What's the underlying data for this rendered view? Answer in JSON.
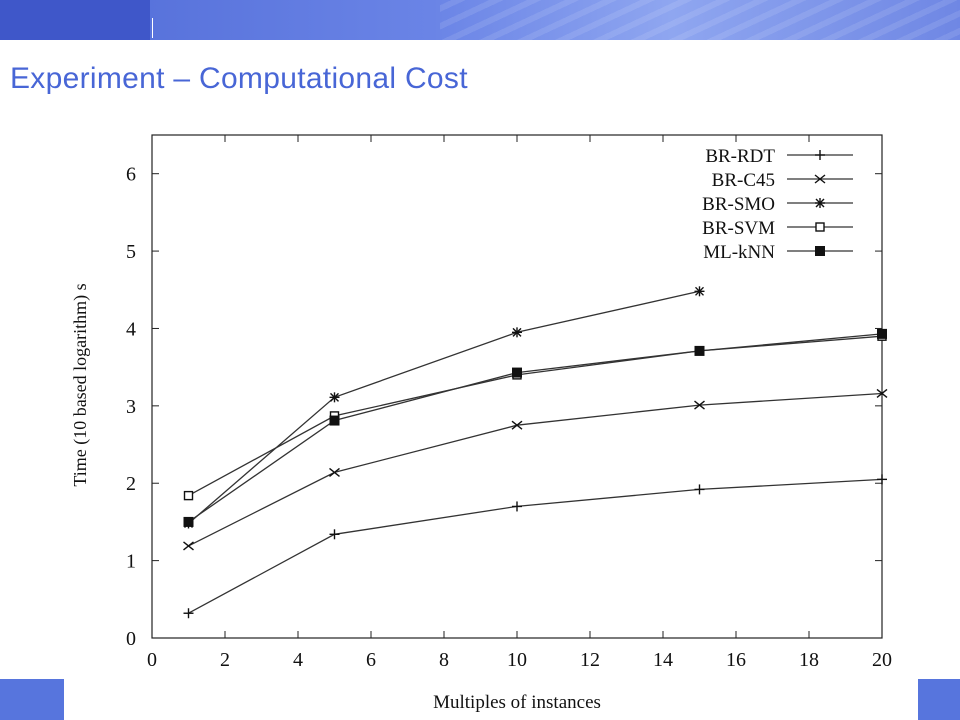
{
  "slide": {
    "title": "Experiment – Computational Cost",
    "accent_color": "#4866d6",
    "banner_color": "#5775dd"
  },
  "chart_data": {
    "type": "line",
    "xlabel": "Multiples of instances",
    "ylabel": "Time (10 based logarithm) s",
    "xlim": [
      0,
      20
    ],
    "ylim": [
      0,
      6.5
    ],
    "xticks": [
      "0",
      "2",
      "4",
      "6",
      "8",
      "10",
      "12",
      "14",
      "16",
      "18",
      "20"
    ],
    "yticks": [
      "0",
      "1",
      "2",
      "3",
      "4",
      "5",
      "6"
    ],
    "grid": false,
    "legend_position": "top-right",
    "series": [
      {
        "name": "BR-RDT",
        "marker": "plus",
        "x": [
          1,
          5,
          10,
          15,
          20
        ],
        "y": [
          0.32,
          1.34,
          1.7,
          1.92,
          2.05
        ]
      },
      {
        "name": "BR-C45",
        "marker": "cross",
        "x": [
          1,
          5,
          10,
          15,
          20
        ],
        "y": [
          1.19,
          2.14,
          2.75,
          3.01,
          3.16
        ]
      },
      {
        "name": "BR-SMO",
        "marker": "star",
        "x": [
          1,
          5,
          10,
          15
        ],
        "y": [
          1.48,
          3.11,
          3.95,
          4.48
        ]
      },
      {
        "name": "BR-SVM",
        "marker": "open-square",
        "x": [
          1,
          5,
          10,
          15,
          20
        ],
        "y": [
          1.84,
          2.87,
          3.4,
          3.71,
          3.9
        ]
      },
      {
        "name": "ML-kNN",
        "marker": "filled-square",
        "x": [
          1,
          5,
          10,
          15,
          20
        ],
        "y": [
          1.5,
          2.81,
          3.43,
          3.71,
          3.93
        ]
      }
    ]
  }
}
